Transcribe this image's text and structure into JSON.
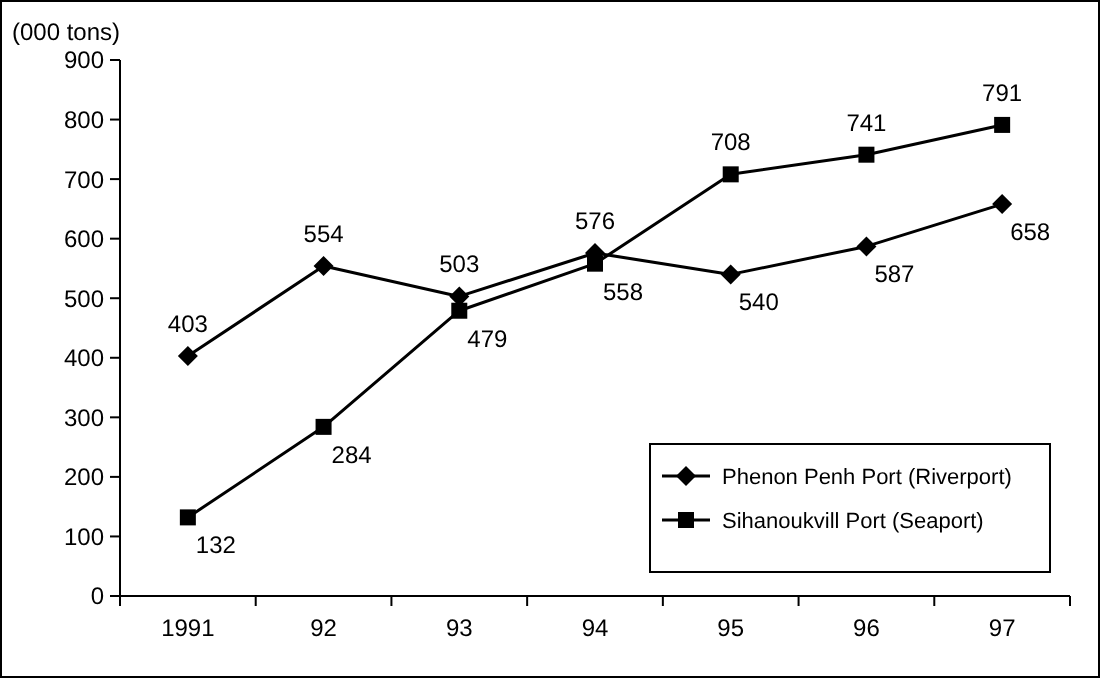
{
  "chart_data": {
    "type": "line",
    "ylabel": "(000 tons)",
    "categories": [
      "1991",
      "92",
      "93",
      "94",
      "95",
      "96",
      "97"
    ],
    "series": [
      {
        "name": "Phenon Penh Port (Riverport)",
        "color": "#000000",
        "marker": "diamond",
        "values": [
          403,
          554,
          503,
          576,
          540,
          587,
          658
        ]
      },
      {
        "name": "Sihanoukvill Port (Seaport)",
        "color": "#000000",
        "marker": "square",
        "values": [
          132,
          284,
          479,
          558,
          708,
          741,
          791
        ]
      }
    ],
    "ylim": [
      0,
      900
    ],
    "yticks": [
      0,
      100,
      200,
      300,
      400,
      500,
      600,
      700,
      800,
      900
    ],
    "grid": false,
    "legend": "bottom right",
    "data_labels": true
  }
}
